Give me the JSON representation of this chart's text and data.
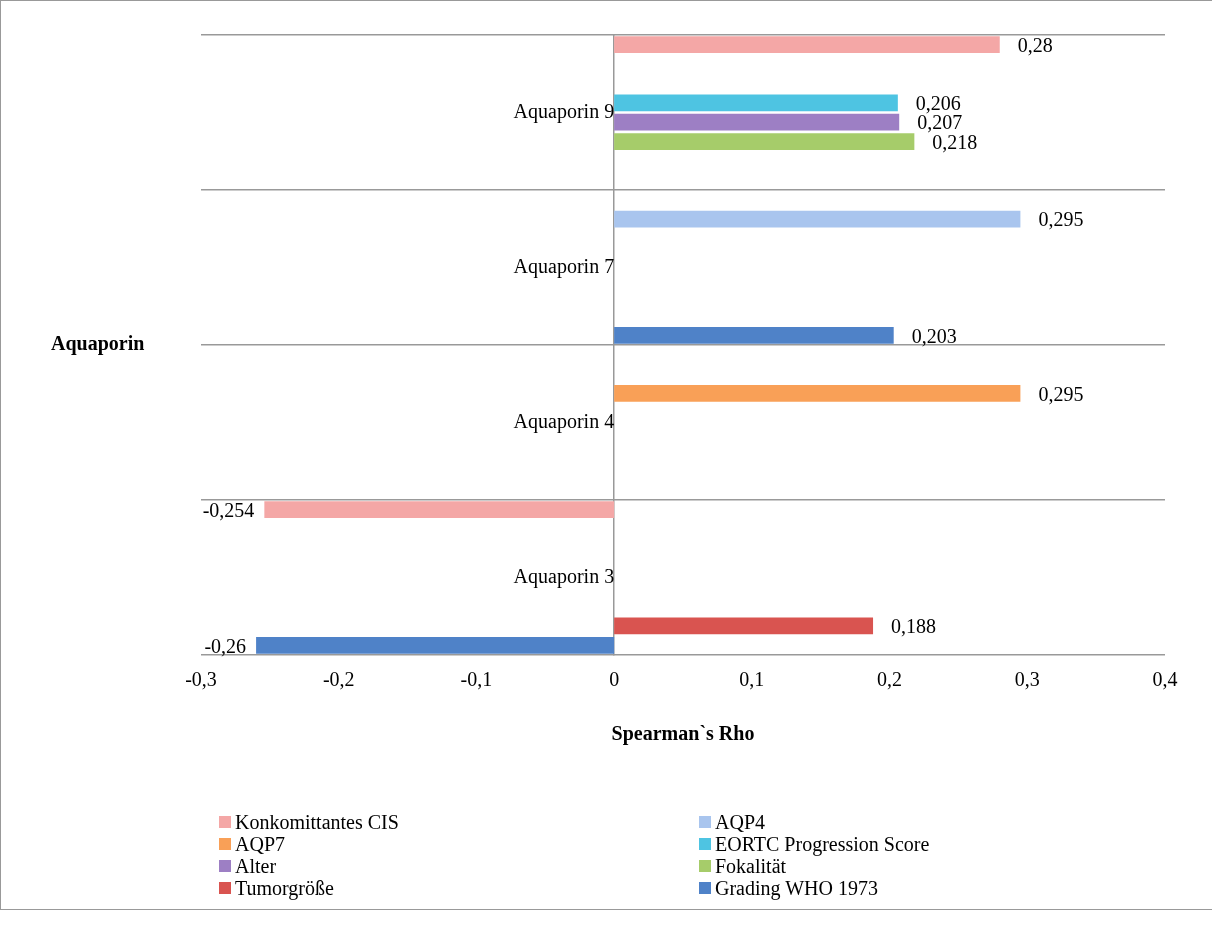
{
  "chart_data": {
    "type": "bar",
    "orientation": "horizontal",
    "xlabel": "Spearman`s Rho",
    "ylabel": "Aquaporin",
    "categories": [
      "Aquaporin 9",
      "Aquaporin 7",
      "Aquaporin 4",
      "Aquaporin 3"
    ],
    "xlim": [
      -0.3,
      0.4
    ],
    "xticks": [
      {
        "value": -0.3,
        "label": "-0,3"
      },
      {
        "value": -0.2,
        "label": "-0,2"
      },
      {
        "value": -0.1,
        "label": "-0,1"
      },
      0,
      {
        "value": 0.1,
        "label": "0,1"
      },
      {
        "value": 0.2,
        "label": "0,2"
      },
      {
        "value": 0.3,
        "label": "0,3"
      },
      {
        "value": 0.4,
        "label": "0,4"
      }
    ],
    "grid": "y",
    "legend": "bottom",
    "series": [
      {
        "name": "Konkomittantes CIS",
        "color": "#f4a7a6",
        "values": [
          0.28,
          null,
          null,
          -0.254
        ],
        "value_labels": [
          "0,28",
          null,
          null,
          "-0,254"
        ]
      },
      {
        "name": "AQP4",
        "color": "#a9c5ee",
        "values": [
          null,
          0.295,
          null,
          null
        ],
        "value_labels": [
          null,
          "0,295",
          null,
          null
        ]
      },
      {
        "name": "AQP7",
        "color": "#f9a057",
        "values": [
          null,
          null,
          0.295,
          null
        ],
        "value_labels": [
          null,
          null,
          "0,295",
          null
        ]
      },
      {
        "name": "EORTC Progression Score",
        "color": "#4ec4e2",
        "values": [
          0.206,
          null,
          null,
          null
        ],
        "value_labels": [
          "0,206",
          null,
          null,
          null
        ]
      },
      {
        "name": "Alter",
        "color": "#9d7fc4",
        "values": [
          0.207,
          null,
          null,
          null
        ],
        "value_labels": [
          "0,207",
          null,
          null,
          null
        ]
      },
      {
        "name": "Fokalität",
        "color": "#a6cc6a",
        "values": [
          0.218,
          null,
          null,
          null
        ],
        "value_labels": [
          "0,218",
          null,
          null,
          null
        ]
      },
      {
        "name": "Tumorgröße",
        "color": "#d95450",
        "values": [
          null,
          null,
          null,
          0.188
        ],
        "value_labels": [
          null,
          null,
          null,
          "0,188"
        ]
      },
      {
        "name": "Grading WHO 1973",
        "color": "#4f82c8",
        "values": [
          null,
          0.203,
          null,
          -0.26
        ],
        "value_labels": [
          null,
          "0,203",
          null,
          "-0,26"
        ]
      }
    ]
  }
}
